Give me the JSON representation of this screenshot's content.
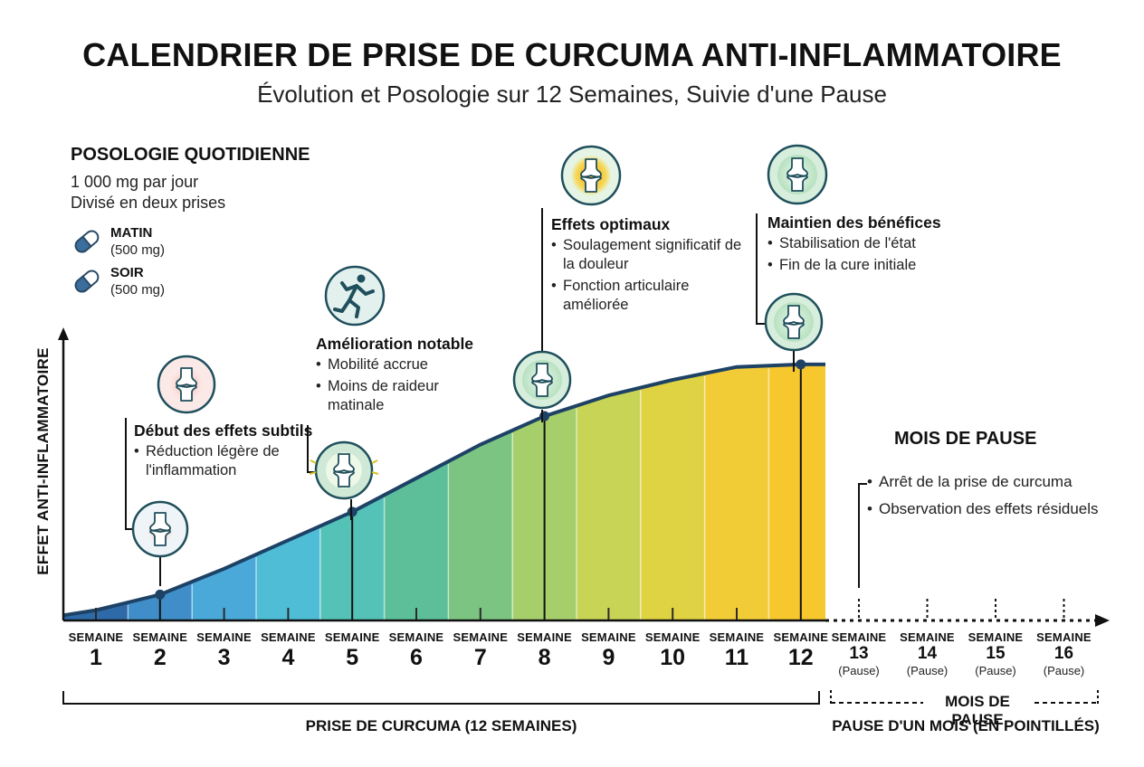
{
  "header": {
    "title": "CALENDRIER DE PRISE DE CURCUMA ANTI-INFLAMMATOIRE",
    "subtitle": "Évolution et Posologie sur 12 Semaines, Suivie d'une Pause"
  },
  "posologie": {
    "title": "POSOLOGIE QUOTIDIENNE",
    "line1": "1 000 mg par jour",
    "line2": "Divisé en deux prises",
    "morning_name": "MATIN",
    "morning_dose": "(500 mg)",
    "evening_name": "SOIR",
    "evening_dose": "(500 mg)"
  },
  "annotations": {
    "w2": {
      "title": "Début des effets subtils",
      "items": [
        "Réduction légère de l'inflammation"
      ]
    },
    "w5": {
      "title": "Amélioration notable",
      "items": [
        "Mobilité accrue",
        "Moins de raideur matinale"
      ]
    },
    "w8": {
      "title": "Effets optimaux",
      "items": [
        "Soulagement significatif de la douleur",
        "Fonction articulaire améliorée"
      ]
    },
    "w12": {
      "title": "Maintien des bénéfices",
      "items": [
        "Stabilisation de l'état",
        "Fin de la cure initiale"
      ]
    }
  },
  "pause_box": {
    "title": "MOIS DE PAUSE",
    "items": [
      "Arrêt de la prise de curcuma",
      "Observation des effets résiduels"
    ]
  },
  "chart_data": {
    "type": "area",
    "ylabel": "EFFET ANTI-INFLAMMATOIRE",
    "x_label_prefix": "SEMAINE",
    "x": [
      1,
      2,
      3,
      4,
      5,
      6,
      7,
      8,
      9,
      10,
      11,
      12
    ],
    "values": [
      4,
      10,
      20,
      31,
      42,
      55,
      68,
      79,
      87,
      93,
      98,
      99
    ],
    "ylim": [
      0,
      100
    ],
    "highlighted_weeks": [
      2,
      5,
      8,
      12
    ],
    "pause_weeks": [
      13,
      14,
      15,
      16
    ],
    "pause_label": "(Pause)",
    "colors": [
      "#2f6aa8",
      "#3f8ec9",
      "#4aa9d9",
      "#4fbdd6",
      "#55c2b8",
      "#5dbf9a",
      "#7cc482",
      "#a6cf6b",
      "#c8d456",
      "#dfd343",
      "#f2cc37",
      "#f7c72e"
    ],
    "line_color": "#1e4266"
  },
  "footer": {
    "prise_label": "PRISE DE CURCUMA (12 SEMAINES)",
    "pause_brace_label": "MOIS DE PAUSE",
    "pause_caption": "PAUSE D'UN MOIS (EN POINTILLÉS)"
  }
}
